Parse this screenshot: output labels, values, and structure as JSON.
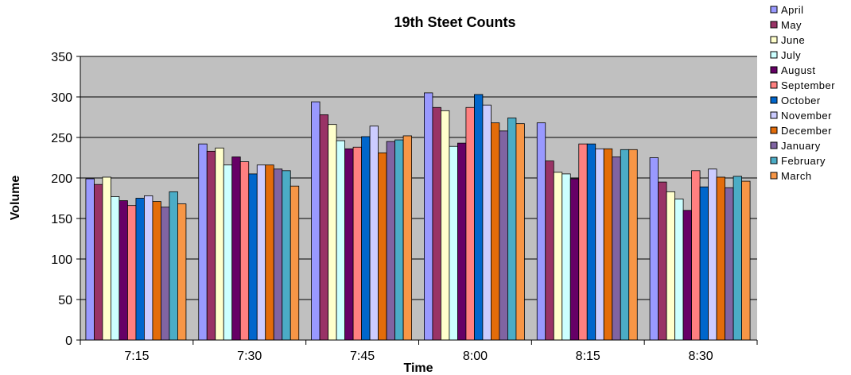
{
  "chart_data": {
    "type": "bar",
    "title": "19th Steet Counts",
    "xlabel": "Time",
    "ylabel": "Volume",
    "ylim": [
      0,
      350
    ],
    "yticks": [
      0,
      50,
      100,
      150,
      200,
      250,
      300,
      350
    ],
    "grid": true,
    "legend": "right",
    "plot_background": "#c0c0c0",
    "categories": [
      "7:15",
      "7:30",
      "7:45",
      "8:00",
      "8:15",
      "8:30"
    ],
    "series": [
      {
        "name": "April",
        "color": "#9999ff",
        "values": [
          199,
          242,
          294,
          305,
          268,
          225
        ]
      },
      {
        "name": "May",
        "color": "#993366",
        "values": [
          192,
          233,
          278,
          287,
          221,
          195
        ]
      },
      {
        "name": "June",
        "color": "#ffffcc",
        "values": [
          201,
          237,
          266,
          283,
          207,
          183
        ]
      },
      {
        "name": "July",
        "color": "#ccffff",
        "values": [
          177,
          216,
          246,
          239,
          205,
          174
        ]
      },
      {
        "name": "August",
        "color": "#660066",
        "values": [
          172,
          226,
          236,
          243,
          199,
          160
        ]
      },
      {
        "name": "September",
        "color": "#ff8080",
        "values": [
          166,
          220,
          238,
          287,
          242,
          209
        ]
      },
      {
        "name": "October",
        "color": "#0066cc",
        "values": [
          175,
          205,
          251,
          303,
          242,
          189
        ]
      },
      {
        "name": "November",
        "color": "#ccccff",
        "values": [
          178,
          216,
          264,
          290,
          236,
          211
        ]
      },
      {
        "name": "December",
        "color": "#e36c0a",
        "values": [
          171,
          216,
          231,
          268,
          236,
          201
        ]
      },
      {
        "name": "January",
        "color": "#8064a2",
        "values": [
          164,
          211,
          245,
          258,
          226,
          188
        ]
      },
      {
        "name": "February",
        "color": "#4bacc6",
        "values": [
          183,
          209,
          247,
          274,
          235,
          202
        ]
      },
      {
        "name": "March",
        "color": "#f79646",
        "values": [
          168,
          190,
          252,
          267,
          235,
          196
        ]
      }
    ]
  }
}
